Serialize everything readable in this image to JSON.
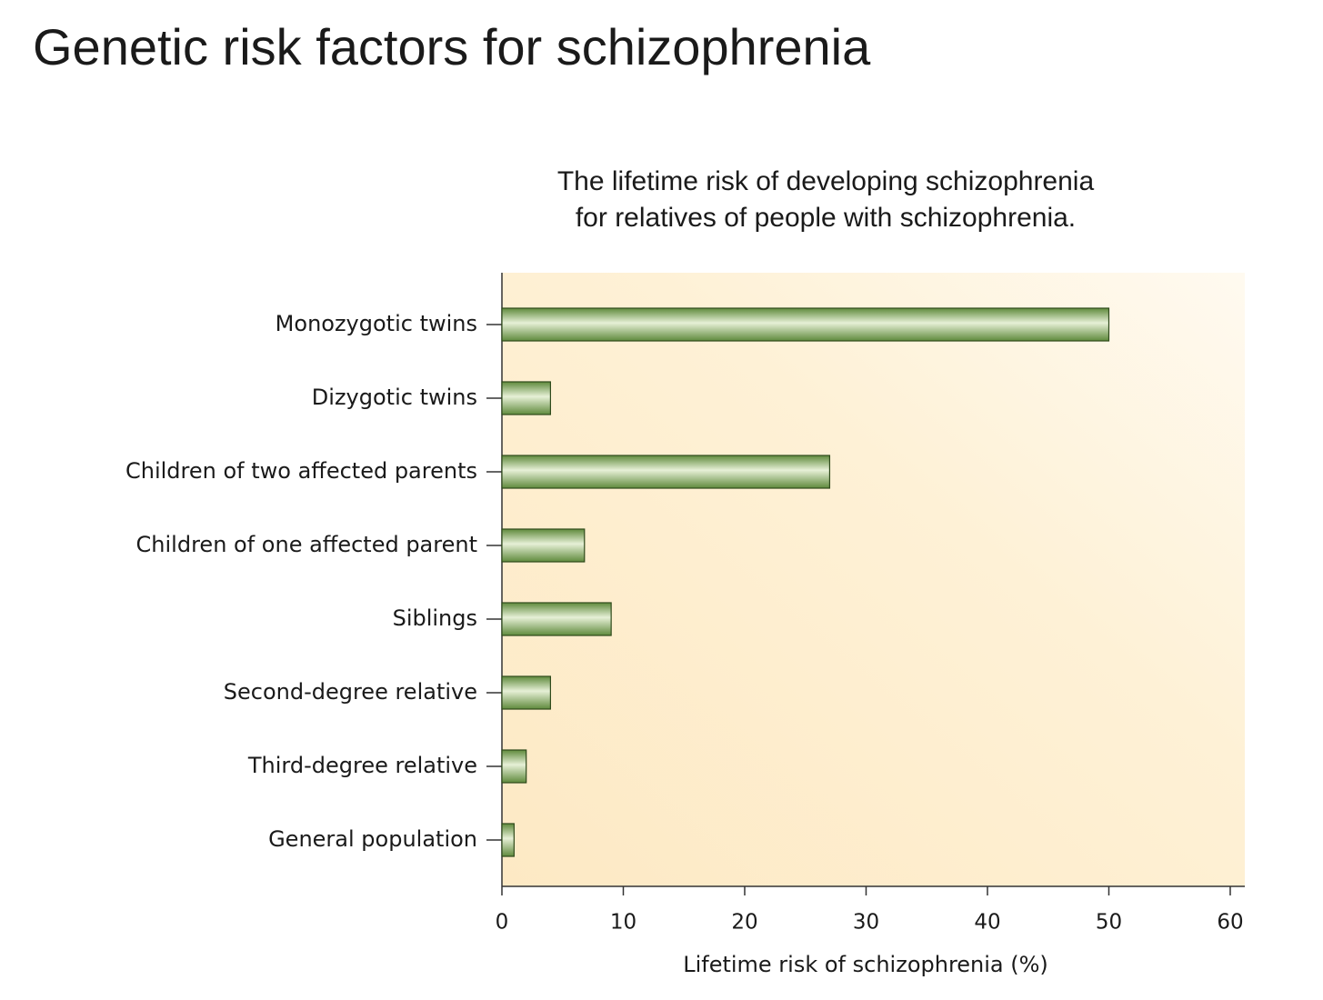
{
  "chart_data": {
    "type": "barh",
    "title": "Genetic risk factors for schizophrenia",
    "subtitle": [
      "The lifetime risk of developing schizophrenia",
      "for relatives of people with schizophrenia."
    ],
    "xlabel": "Lifetime risk of schizophrenia (%)",
    "categories": [
      "Monozygotic twins",
      "Dizygotic twins",
      "Children of two affected parents",
      "Children of one affected parent",
      "Siblings",
      "Second-degree relative",
      "Third-degree relative",
      "General population"
    ],
    "values": [
      50,
      4,
      27,
      6.8,
      9,
      4,
      2,
      1
    ],
    "color": "#7ea65a",
    "xlim": [
      0,
      61.2
    ],
    "xticks": [
      0,
      10,
      20,
      30,
      40,
      50,
      60
    ]
  }
}
